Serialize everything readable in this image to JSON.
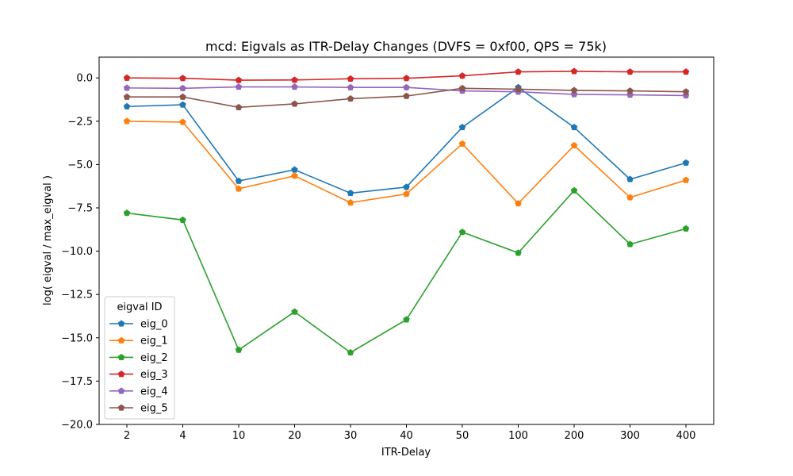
{
  "chart_data": {
    "type": "line",
    "title": "mcd: Eigvals as ITR-Delay Changes (DVFS = 0xf00, QPS = 75k)",
    "xlabel": "ITR-Delay",
    "ylabel": "log( eigval / max_eigval )",
    "categories": [
      "2",
      "4",
      "10",
      "20",
      "30",
      "40",
      "50",
      "100",
      "200",
      "300",
      "400"
    ],
    "ylim": [
      -20,
      1.2
    ],
    "yticks": [
      0.0,
      -2.5,
      -5.0,
      -7.5,
      -10.0,
      -12.5,
      -15.0,
      -17.5,
      -20.0
    ],
    "ytick_labels": [
      "0.0",
      "−2.5",
      "−5.0",
      "−7.5",
      "−10.0",
      "−12.5",
      "−15.0",
      "−17.5",
      "−20.0"
    ],
    "grid": false,
    "marker": "pentagon",
    "legend": {
      "title": "eigval ID",
      "position": "lower-left"
    },
    "series": [
      {
        "name": "eig_0",
        "color": "#1f77b4",
        "values": [
          -1.65,
          -1.55,
          -5.95,
          -5.3,
          -6.65,
          -6.3,
          -2.85,
          -0.55,
          -2.85,
          -5.85,
          -4.9
        ]
      },
      {
        "name": "eig_1",
        "color": "#ff7f0e",
        "values": [
          -2.5,
          -2.55,
          -6.4,
          -5.65,
          -7.2,
          -6.7,
          -3.8,
          -7.25,
          -3.9,
          -6.9,
          -5.9
        ]
      },
      {
        "name": "eig_2",
        "color": "#2ca02c",
        "values": [
          -7.8,
          -8.2,
          -15.7,
          -13.5,
          -15.85,
          -13.95,
          -8.9,
          -10.1,
          -6.5,
          -9.6,
          -8.7
        ]
      },
      {
        "name": "eig_3",
        "color": "#d62728",
        "values": [
          0.0,
          -0.02,
          -0.13,
          -0.12,
          -0.05,
          -0.02,
          0.12,
          0.35,
          0.38,
          0.35,
          0.35
        ]
      },
      {
        "name": "eig_4",
        "color": "#9467bd",
        "values": [
          -0.58,
          -0.6,
          -0.52,
          -0.52,
          -0.55,
          -0.55,
          -0.75,
          -0.8,
          -0.95,
          -0.98,
          -1.02
        ]
      },
      {
        "name": "eig_5",
        "color": "#8c564b",
        "values": [
          -1.1,
          -1.1,
          -1.7,
          -1.5,
          -1.2,
          -1.05,
          -0.6,
          -0.65,
          -0.72,
          -0.75,
          -0.8
        ]
      }
    ]
  }
}
